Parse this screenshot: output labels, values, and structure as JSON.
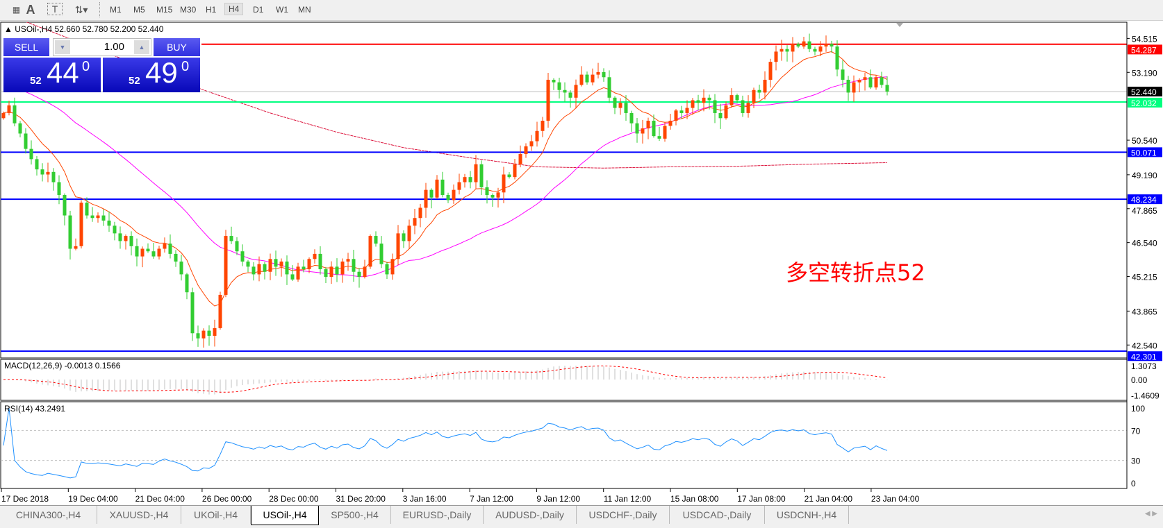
{
  "toolbar": {
    "icons": [
      "grid-icon",
      "text-A-icon",
      "text-label-icon",
      "arrows-dropdown-icon"
    ],
    "text_a": "A",
    "text_t": "T",
    "timeframes": [
      "M1",
      "M5",
      "M15",
      "M30",
      "H1",
      "H4",
      "D1",
      "W1",
      "MN"
    ],
    "active_timeframe": "H4"
  },
  "chart_header": {
    "title": "USOil-,H4  52.660 52.780 52.200 52.440"
  },
  "trade_panel": {
    "sell_label": "SELL",
    "buy_label": "BUY",
    "lot": "1.00",
    "sell_big": "52",
    "sell_pips": "44",
    "sell_frac": "0",
    "buy_big": "52",
    "buy_pips": "49",
    "buy_frac": "0"
  },
  "annotation": "多空转折点52",
  "colors": {
    "bull": "#ff4500",
    "bear": "#32cd32",
    "ema": "#ff4500",
    "ma_mid": "#ff00ff",
    "ma_long": "#dc143c",
    "resistance": "#ff0000",
    "pivot": "#00ff7f",
    "support": "#0000dd",
    "bid": "#c0c0c0",
    "macd_hist": "#c0c0c0",
    "macd_signal": "#ff0000",
    "rsi": "#1e90ff"
  },
  "chart_data": {
    "type": "candlestick",
    "symbol": "USOil-",
    "timeframe": "H4",
    "price_axis_ticks": [
      "54.515",
      "53.190",
      "50.540",
      "49.190",
      "47.865",
      "46.540",
      "45.215",
      "43.865",
      "42.540"
    ],
    "time_labels": [
      "17 Dec 2018",
      "19 Dec 04:00",
      "21 Dec 04:00",
      "26 Dec 00:00",
      "28 Dec 00:00",
      "31 Dec 20:00",
      "3 Jan 16:00",
      "7 Jan 12:00",
      "9 Jan 12:00",
      "11 Jan 12:00",
      "15 Jan 08:00",
      "17 Jan 08:00",
      "21 Jan 04:00",
      "23 Jan 04:00"
    ],
    "closes": [
      51.6,
      51.9,
      51.2,
      50.8,
      50.2,
      49.8,
      49.4,
      49.2,
      49.3,
      48.9,
      48.4,
      47.6,
      46.3,
      46.4,
      48.1,
      47.6,
      47.5,
      47.6,
      47.4,
      47.2,
      46.9,
      46.6,
      46.8,
      46.4,
      46.0,
      46.3,
      46.2,
      46.0,
      46.3,
      46.5,
      46.1,
      45.8,
      45.3,
      44.6,
      43.0,
      42.8,
      43.1,
      42.9,
      43.2,
      44.5,
      46.8,
      46.6,
      46.2,
      45.8,
      45.6,
      45.3,
      45.7,
      45.4,
      45.9,
      45.6,
      45.8,
      45.3,
      45.1,
      45.6,
      45.5,
      45.9,
      46.1,
      45.5,
      45.2,
      45.6,
      45.3,
      45.8,
      45.9,
      45.4,
      45.2,
      45.6,
      46.8,
      46.5,
      45.7,
      45.3,
      45.9,
      46.9,
      46.6,
      47.2,
      47.5,
      47.9,
      48.6,
      48.3,
      49.0,
      48.4,
      48.2,
      48.6,
      48.9,
      49.1,
      48.9,
      49.6,
      48.7,
      48.4,
      48.3,
      48.5,
      49.2,
      49.1,
      49.6,
      50.0,
      50.3,
      50.5,
      50.9,
      51.3,
      52.9,
      52.8,
      52.5,
      52.4,
      52.2,
      52.7,
      53.1,
      52.8,
      53.1,
      53.2,
      53.0,
      52.2,
      51.8,
      52.0,
      51.6,
      51.2,
      50.8,
      51.0,
      51.3,
      50.7,
      50.6,
      51.1,
      51.3,
      51.7,
      51.6,
      51.8,
      52.1,
      52.0,
      52.2,
      52.1,
      51.6,
      51.4,
      51.9,
      52.3,
      52.1,
      51.6,
      52.0,
      52.5,
      52.4,
      52.9,
      53.6,
      54.0,
      54.1,
      54.0,
      54.3,
      54.2,
      54.4,
      54.1,
      54.0,
      54.2,
      54.3,
      54.2,
      53.3,
      52.9,
      52.4,
      52.8,
      52.9,
      53.0,
      52.6,
      53.0,
      52.7,
      52.44
    ],
    "ma_long_at_time_labels": [
      55.5,
      54.5,
      53.5,
      52.5,
      51.6,
      50.85,
      50.25,
      49.85,
      49.5,
      49.45,
      49.5,
      49.52,
      49.6,
      49.65
    ],
    "horizontal_lines": [
      {
        "label": "54.287",
        "value": 54.287,
        "color": "#ff0000",
        "text": "#ffffff"
      },
      {
        "label": "52.440",
        "value": 52.44,
        "color": "#000000",
        "text": "#ffffff"
      },
      {
        "label": "52.032",
        "value": 52.032,
        "color": "#00ff7f",
        "text": "#ffffff"
      },
      {
        "label": "50.071",
        "value": 50.071,
        "color": "#0000ff",
        "text": "#ffffff"
      },
      {
        "label": "48.234",
        "value": 48.234,
        "color": "#0000ff",
        "text": "#ffffff"
      },
      {
        "label": "42.301",
        "value": 42.301,
        "color": "#0000ff",
        "text": "#ffffff"
      }
    ],
    "macd": {
      "label": "MACD(12,26,9) -0.0013 0.1566",
      "ticks": [
        "1.3073",
        "0.00",
        "-1.4609"
      ]
    },
    "rsi": {
      "label": "RSI(14) 43.2491",
      "ticks": [
        "100",
        "70",
        "30",
        "0"
      ],
      "levels": [
        70,
        30
      ]
    }
  },
  "tabs": [
    {
      "label": "CHINA300-,H4"
    },
    {
      "label": "XAUUSD-,H4"
    },
    {
      "label": "UKOil-,H4"
    },
    {
      "label": "USOil-,H4",
      "active": true
    },
    {
      "label": "SP500-,H4"
    },
    {
      "label": "EURUSD-,Daily"
    },
    {
      "label": "AUDUSD-,Daily"
    },
    {
      "label": "USDCHF-,Daily"
    },
    {
      "label": "USDCAD-,Daily"
    },
    {
      "label": "USDCNH-,H4"
    }
  ]
}
